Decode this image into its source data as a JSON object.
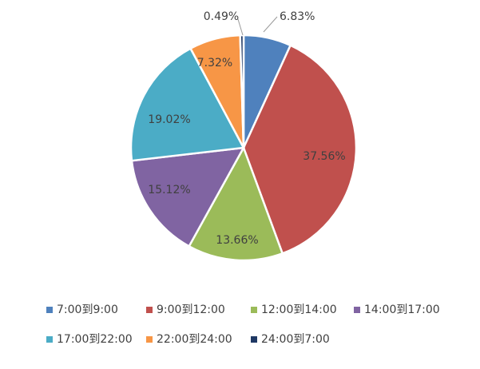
{
  "chart_data": {
    "type": "pie",
    "categories": [
      "7:00到9:00",
      "9:00到12:00",
      "12:00到14:00",
      "14:00到17:00",
      "17:00到22:00",
      "22:00到24:00",
      "24:00到7:00"
    ],
    "values": [
      6.83,
      37.56,
      13.66,
      15.12,
      19.02,
      7.32,
      0.49
    ],
    "labels": [
      "6.83%",
      "37.56%",
      "13.66%",
      "15.12%",
      "19.02%",
      "7.32%",
      "0.49%"
    ],
    "colors": [
      "#4f81bd",
      "#c0504d",
      "#9bbb59",
      "#8064a2",
      "#4bacc6",
      "#f79646",
      "#1f3864"
    ],
    "legend_position": "bottom"
  }
}
